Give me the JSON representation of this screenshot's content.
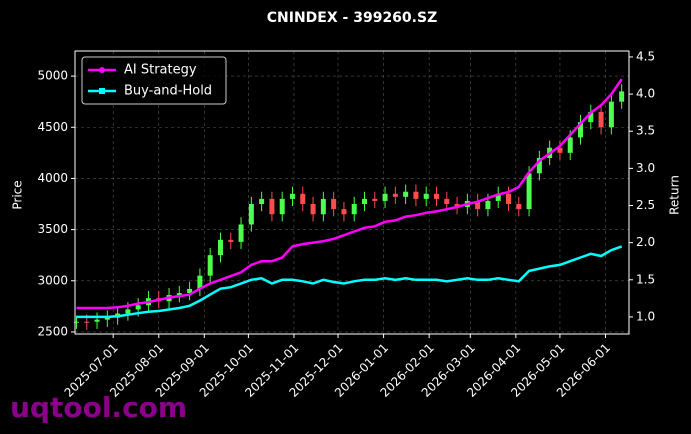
{
  "chart_data": {
    "type": "candlestick",
    "title": "CNINDEX - 399260.SZ",
    "y_label": "Price",
    "y2_label": "Return",
    "watermark": "uqtool.com",
    "x": [
      "2025-06-06",
      "2025-06-13",
      "2025-06-20",
      "2025-06-27",
      "2025-07-04",
      "2025-07-11",
      "2025-07-18",
      "2025-07-25",
      "2025-08-01",
      "2025-08-08",
      "2025-08-15",
      "2025-08-22",
      "2025-08-29",
      "2025-09-05",
      "2025-09-12",
      "2025-09-19",
      "2025-09-26",
      "2025-10-03",
      "2025-10-10",
      "2025-10-17",
      "2025-10-24",
      "2025-10-31",
      "2025-11-07",
      "2025-11-14",
      "2025-11-21",
      "2025-11-28",
      "2025-12-05",
      "2025-12-12",
      "2025-12-19",
      "2025-12-26",
      "2026-01-02",
      "2026-01-09",
      "2026-01-16",
      "2026-01-23",
      "2026-01-30",
      "2026-02-06",
      "2026-02-13",
      "2026-02-20",
      "2026-02-27",
      "2026-03-06",
      "2026-03-13",
      "2026-03-20",
      "2026-03-27",
      "2026-04-03",
      "2026-04-10",
      "2026-04-17",
      "2026-04-24",
      "2026-05-01",
      "2026-05-08",
      "2026-05-15",
      "2026-05-22",
      "2026-05-29",
      "2026-06-05",
      "2026-06-12"
    ],
    "ohlc": {
      "open": [
        2590,
        2600,
        2600,
        2620,
        2640,
        2680,
        2720,
        2760,
        2830,
        2800,
        2860,
        2880,
        2920,
        3050,
        3250,
        3400,
        3380,
        3550,
        3750,
        3800,
        3650,
        3800,
        3850,
        3750,
        3650,
        3800,
        3700,
        3650,
        3750,
        3800,
        3780,
        3850,
        3820,
        3870,
        3800,
        3850,
        3800,
        3750,
        3720,
        3780,
        3700,
        3780,
        3850,
        3750,
        3700,
        4050,
        4200,
        4300,
        4250,
        4400,
        4550,
        4650,
        4500,
        4750
      ],
      "high": [
        2660,
        2670,
        2690,
        2710,
        2750,
        2790,
        2830,
        2900,
        2900,
        2930,
        2950,
        2990,
        3120,
        3320,
        3470,
        3470,
        3620,
        3820,
        3870,
        3870,
        3870,
        3920,
        3920,
        3820,
        3870,
        3870,
        3770,
        3820,
        3870,
        3870,
        3920,
        3920,
        3940,
        3940,
        3920,
        3920,
        3870,
        3820,
        3850,
        3850,
        3850,
        3920,
        3920,
        3820,
        4120,
        4270,
        4370,
        4370,
        4470,
        4620,
        4720,
        4720,
        4820,
        4920
      ],
      "low": [
        2530,
        2520,
        2530,
        2550,
        2570,
        2610,
        2650,
        2690,
        2730,
        2730,
        2790,
        2810,
        2850,
        2980,
        3180,
        3310,
        3310,
        3480,
        3680,
        3580,
        3580,
        3730,
        3680,
        3580,
        3580,
        3630,
        3580,
        3580,
        3680,
        3710,
        3710,
        3750,
        3750,
        3730,
        3730,
        3730,
        3680,
        3650,
        3650,
        3630,
        3630,
        3710,
        3680,
        3630,
        3630,
        3980,
        4130,
        4180,
        4180,
        4330,
        4480,
        4430,
        4430,
        4680
      ],
      "close": [
        2600,
        2590,
        2620,
        2640,
        2680,
        2720,
        2760,
        2830,
        2800,
        2860,
        2880,
        2920,
        3050,
        3250,
        3400,
        3380,
        3550,
        3750,
        3800,
        3650,
        3800,
        3850,
        3750,
        3650,
        3800,
        3700,
        3650,
        3750,
        3800,
        3780,
        3850,
        3820,
        3870,
        3800,
        3850,
        3800,
        3750,
        3720,
        3780,
        3700,
        3780,
        3850,
        3750,
        3700,
        4050,
        4200,
        4300,
        4250,
        4400,
        4550,
        4650,
        4500,
        4750,
        4850
      ]
    },
    "up_color": "#4cff4c",
    "down_color": "#ff4c4c",
    "series": [
      {
        "name": "AI Strategy",
        "color": "#ff00ff",
        "axis": "y2",
        "marker": "circle",
        "values": [
          1.12,
          1.12,
          1.12,
          1.12,
          1.13,
          1.15,
          1.18,
          1.2,
          1.23,
          1.26,
          1.28,
          1.3,
          1.38,
          1.45,
          1.5,
          1.55,
          1.6,
          1.7,
          1.75,
          1.75,
          1.8,
          1.95,
          1.98,
          2.0,
          2.02,
          2.05,
          2.1,
          2.15,
          2.2,
          2.22,
          2.28,
          2.3,
          2.35,
          2.37,
          2.4,
          2.42,
          2.45,
          2.48,
          2.52,
          2.55,
          2.6,
          2.65,
          2.68,
          2.75,
          2.95,
          3.1,
          3.2,
          3.3,
          3.45,
          3.6,
          3.75,
          3.85,
          4.0,
          4.2
        ]
      },
      {
        "name": "Buy-and-Hold",
        "color": "#00ffff",
        "axis": "y2",
        "marker": "square",
        "values": [
          1.0,
          1.0,
          1.0,
          1.0,
          1.01,
          1.03,
          1.05,
          1.07,
          1.08,
          1.1,
          1.12,
          1.15,
          1.22,
          1.3,
          1.38,
          1.4,
          1.45,
          1.5,
          1.52,
          1.45,
          1.5,
          1.5,
          1.48,
          1.45,
          1.5,
          1.47,
          1.45,
          1.48,
          1.5,
          1.5,
          1.52,
          1.5,
          1.52,
          1.5,
          1.5,
          1.5,
          1.48,
          1.5,
          1.52,
          1.5,
          1.5,
          1.52,
          1.5,
          1.48,
          1.62,
          1.65,
          1.68,
          1.7,
          1.75,
          1.8,
          1.85,
          1.82,
          1.9,
          1.95
        ]
      }
    ],
    "xlim": [
      "2025-06-05",
      "2026-06-17"
    ],
    "xticks": [
      "2025-07-01",
      "2025-08-01",
      "2025-09-01",
      "2025-10-01",
      "2025-11-01",
      "2025-12-01",
      "2026-01-01",
      "2026-02-01",
      "2026-03-01",
      "2026-04-01",
      "2026-05-01",
      "2026-06-01"
    ],
    "ylim": [
      2480,
      5245
    ],
    "yticks": [
      2500,
      3000,
      3500,
      4000,
      4500,
      5000
    ],
    "y2lim": [
      0.77,
      4.58
    ],
    "y2ticks": [
      {
        "value": 1,
        "label": "1.0"
      },
      1.5,
      {
        "value": 2,
        "label": "2.0"
      },
      2.5,
      {
        "value": 3,
        "label": "3.0"
      },
      3.5,
      {
        "value": 4,
        "label": "4.0"
      },
      4.5
    ],
    "grid": true,
    "legend": "upper left"
  }
}
